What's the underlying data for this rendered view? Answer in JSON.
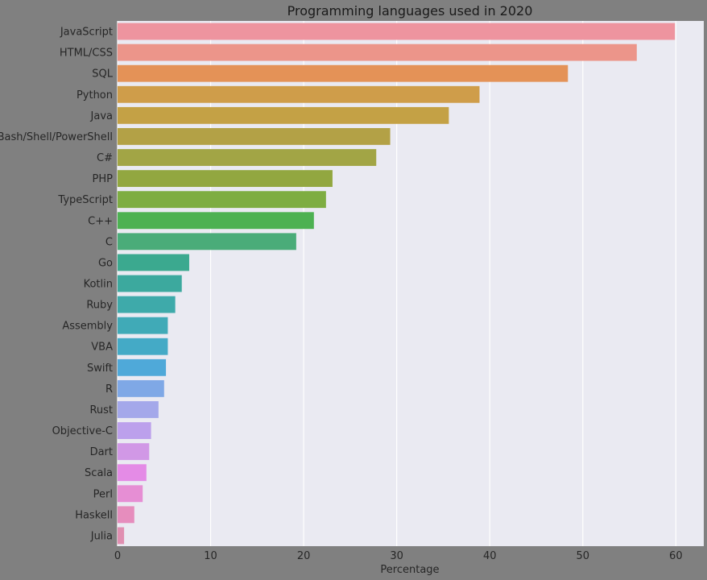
{
  "chart_data": {
    "type": "bar",
    "orientation": "horizontal",
    "title": "Programming languages used in 2020",
    "xlabel": "Percentage",
    "ylabel": "",
    "xlim": [
      0,
      63
    ],
    "xticks": [
      0,
      10,
      20,
      30,
      40,
      50,
      60
    ],
    "grid": true,
    "legend": "none",
    "categories": [
      "JavaScript",
      "HTML/CSS",
      "SQL",
      "Python",
      "Java",
      "Bash/Shell/PowerShell",
      "C#",
      "PHP",
      "TypeScript",
      "C++",
      "C",
      "Go",
      "Kotlin",
      "Ruby",
      "Assembly",
      "VBA",
      "Swift",
      "R",
      "Rust",
      "Objective-C",
      "Dart",
      "Scala",
      "Perl",
      "Haskell",
      "Julia"
    ],
    "values": [
      59.9,
      55.8,
      48.4,
      38.9,
      35.6,
      29.3,
      27.8,
      23.1,
      22.4,
      21.1,
      19.2,
      7.7,
      6.9,
      6.2,
      5.4,
      5.4,
      5.2,
      5.0,
      4.4,
      3.6,
      3.4,
      3.1,
      2.7,
      1.8,
      0.7
    ],
    "colors": [
      "#ee949f",
      "#ec958a",
      "#e49257",
      "#cf9d4a",
      "#c4a145",
      "#b3a146",
      "#a2a545",
      "#92a740",
      "#7ead42",
      "#4db152",
      "#4aac79",
      "#3ba98f",
      "#3ca99e",
      "#3eaaaa",
      "#40aab7",
      "#44aac6",
      "#4fa9d9",
      "#7fa8e6",
      "#a4a8ea",
      "#bca0ec",
      "#d198e6",
      "#e48be6",
      "#e68ed4",
      "#e68dbd",
      "#e08fb1"
    ],
    "background_color": "#eaeaf2",
    "figure_color": "#808080"
  }
}
